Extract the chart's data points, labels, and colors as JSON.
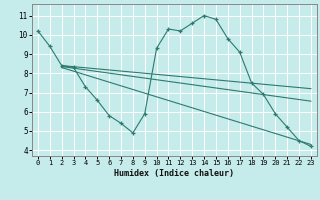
{
  "xlabel": "Humidex (Indice chaleur)",
  "background_color": "#c5ecea",
  "grid_color": "#b0dbd8",
  "line_color": "#2d7a6e",
  "x_ticks": [
    0,
    1,
    2,
    3,
    4,
    5,
    6,
    7,
    8,
    9,
    10,
    11,
    12,
    13,
    14,
    15,
    16,
    17,
    18,
    19,
    20,
    21,
    22,
    23
  ],
  "y_ticks": [
    4,
    5,
    6,
    7,
    8,
    9,
    10,
    11
  ],
  "ylim": [
    3.7,
    11.6
  ],
  "xlim": [
    -0.5,
    23.5
  ],
  "main_curve": {
    "x": [
      0,
      1,
      2,
      3,
      4,
      5,
      6,
      7,
      8,
      9,
      10,
      11,
      12,
      13,
      14,
      15,
      16,
      17,
      18,
      19,
      20,
      21,
      22,
      23
    ],
    "y": [
      10.2,
      9.4,
      8.4,
      8.3,
      7.3,
      6.6,
      5.8,
      5.4,
      4.9,
      5.9,
      9.3,
      10.3,
      10.2,
      10.6,
      11.0,
      10.8,
      9.8,
      9.1,
      7.5,
      6.9,
      5.9,
      5.2,
      4.5,
      4.2
    ]
  },
  "trend_lines": [
    {
      "x": [
        2,
        23
      ],
      "y": [
        8.4,
        7.2
      ]
    },
    {
      "x": [
        2,
        23
      ],
      "y": [
        8.35,
        6.55
      ]
    },
    {
      "x": [
        2,
        23
      ],
      "y": [
        8.3,
        4.3
      ]
    }
  ]
}
